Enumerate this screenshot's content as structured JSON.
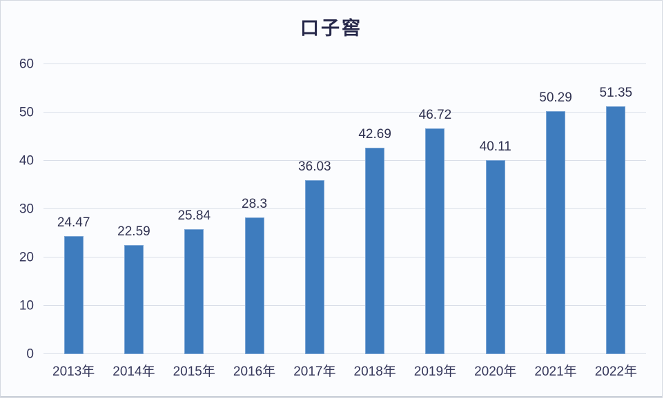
{
  "chart_data": {
    "type": "bar",
    "title": "口子窖",
    "categories": [
      "2013年",
      "2014年",
      "2015年",
      "2016年",
      "2017年",
      "2018年",
      "2019年",
      "2020年",
      "2021年",
      "2022年"
    ],
    "values": [
      24.47,
      22.59,
      25.84,
      28.3,
      36.03,
      42.69,
      46.72,
      40.11,
      50.29,
      51.35
    ],
    "value_labels": [
      "24.47",
      "22.59",
      "25.84",
      "28.3",
      "36.03",
      "42.69",
      "46.72",
      "40.11",
      "50.29",
      "51.35"
    ],
    "xlabel": "",
    "ylabel": "",
    "ylim": [
      0,
      60
    ],
    "ytick_interval": 10,
    "yticks": [
      0,
      10,
      20,
      30,
      40,
      50,
      60
    ],
    "grid": true,
    "legend_position": "none",
    "colors": {
      "bar_fill": "#3e7cbe",
      "gridline": "#d9dee8",
      "tick_text": "#34365a",
      "value_text": "#2f3150",
      "title_text": "#26284a",
      "background": "#fbfcfe"
    }
  }
}
